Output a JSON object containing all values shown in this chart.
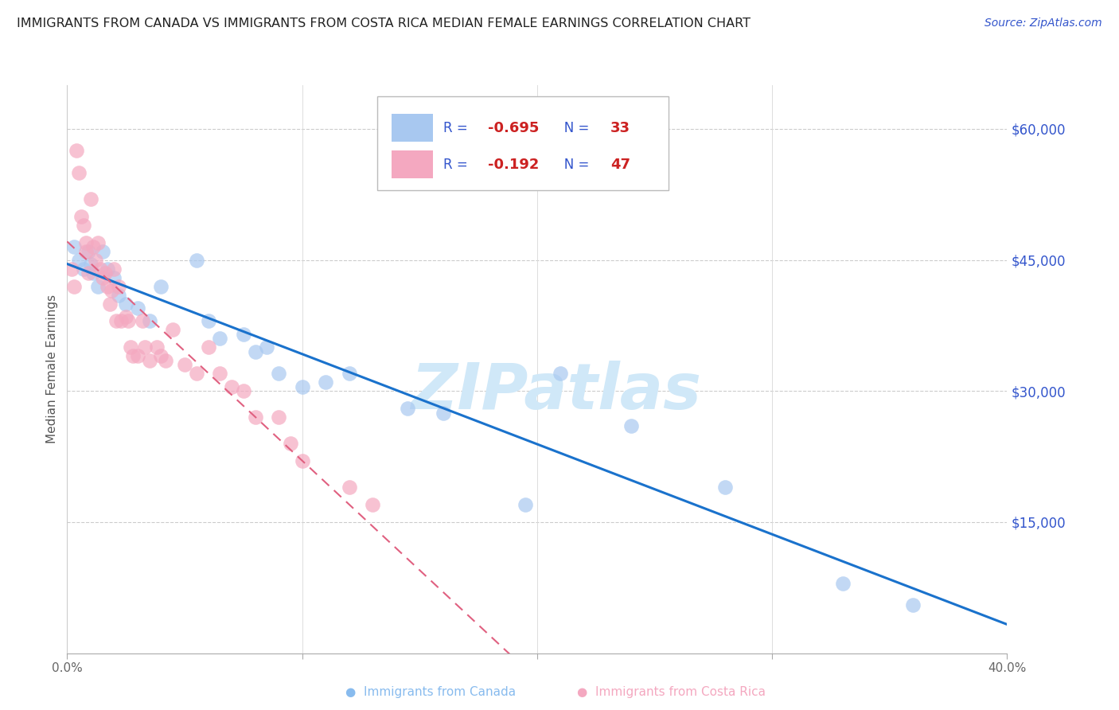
{
  "title": "IMMIGRANTS FROM CANADA VS IMMIGRANTS FROM COSTA RICA MEDIAN FEMALE EARNINGS CORRELATION CHART",
  "source": "Source: ZipAtlas.com",
  "ylabel": "Median Female Earnings",
  "xlim": [
    0.0,
    0.4
  ],
  "ylim": [
    0,
    65000
  ],
  "yticks": [
    0,
    15000,
    30000,
    45000,
    60000
  ],
  "ytick_labels": [
    "",
    "$15,000",
    "$30,000",
    "$45,000",
    "$60,000"
  ],
  "xticks": [
    0.0,
    0.1,
    0.2,
    0.3,
    0.4
  ],
  "xtick_labels": [
    "0.0%",
    "",
    "",
    "",
    "40.0%"
  ],
  "canada_R": -0.695,
  "canada_N": 33,
  "costarica_R": -0.192,
  "costarica_N": 47,
  "canada_color": "#a8c8f0",
  "costarica_color": "#f4a8c0",
  "canada_line_color": "#1a72cc",
  "costarica_line_color": "#e06080",
  "watermark": "ZIPatlas",
  "watermark_color": "#d0e8f8",
  "legend_text_color": "#3355cc",
  "legend_r_color": "#cc2222",
  "legend_n_color": "#cc2222",
  "canada_x": [
    0.003,
    0.005,
    0.007,
    0.009,
    0.01,
    0.011,
    0.013,
    0.015,
    0.017,
    0.02,
    0.022,
    0.025,
    0.03,
    0.035,
    0.04,
    0.055,
    0.06,
    0.065,
    0.075,
    0.08,
    0.085,
    0.09,
    0.1,
    0.11,
    0.12,
    0.145,
    0.16,
    0.195,
    0.21,
    0.24,
    0.28,
    0.33,
    0.36
  ],
  "canada_y": [
    46500,
    45000,
    44000,
    46000,
    44500,
    43500,
    42000,
    46000,
    44000,
    43000,
    41000,
    40000,
    39500,
    38000,
    42000,
    45000,
    38000,
    36000,
    36500,
    34500,
    35000,
    32000,
    30500,
    31000,
    32000,
    28000,
    27500,
    17000,
    32000,
    26000,
    19000,
    8000,
    5500
  ],
  "costarica_x": [
    0.002,
    0.003,
    0.004,
    0.005,
    0.006,
    0.007,
    0.008,
    0.008,
    0.009,
    0.01,
    0.011,
    0.012,
    0.013,
    0.014,
    0.015,
    0.016,
    0.017,
    0.018,
    0.019,
    0.02,
    0.021,
    0.022,
    0.023,
    0.025,
    0.026,
    0.027,
    0.028,
    0.03,
    0.032,
    0.033,
    0.035,
    0.038,
    0.04,
    0.042,
    0.045,
    0.05,
    0.055,
    0.06,
    0.065,
    0.07,
    0.075,
    0.08,
    0.09,
    0.095,
    0.1,
    0.12,
    0.13
  ],
  "costarica_y": [
    44000,
    42000,
    57500,
    55000,
    50000,
    49000,
    47000,
    46000,
    43500,
    52000,
    46500,
    45000,
    47000,
    44000,
    43000,
    43500,
    42000,
    40000,
    41500,
    44000,
    38000,
    42000,
    38000,
    38500,
    38000,
    35000,
    34000,
    34000,
    38000,
    35000,
    33500,
    35000,
    34000,
    33500,
    37000,
    33000,
    32000,
    35000,
    32000,
    30500,
    30000,
    27000,
    27000,
    24000,
    22000,
    19000,
    17000
  ]
}
